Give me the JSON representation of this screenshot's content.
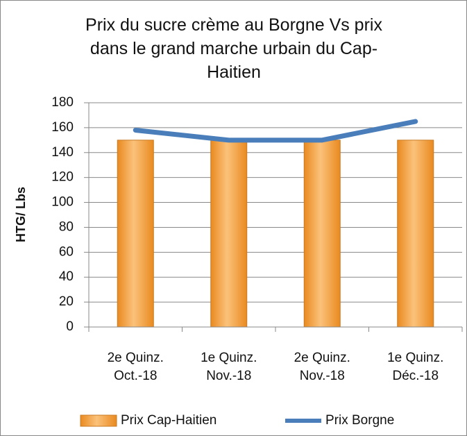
{
  "chart_data": {
    "type": "bar",
    "title": "Prix du sucre crème au Borgne Vs prix dans le grand marche urbain du Cap-Haitien",
    "y_label": "HTG/ Lbs",
    "categories": [
      "2e Quinz. Oct.-18",
      "1e Quinz. Nov.-18",
      "2e Quinz. Nov.-18",
      "1e Quinz. Déc.-18"
    ],
    "series": [
      {
        "name": "Prix Cap-Haitien",
        "type": "bar",
        "color": "#f5a142",
        "values": [
          150,
          150,
          150,
          150
        ]
      },
      {
        "name": "Prix Borgne",
        "type": "line",
        "color": "#4a7ebb",
        "values": [
          158,
          150,
          150,
          165
        ]
      }
    ],
    "ylim": [
      0,
      180
    ],
    "yticks": [
      0,
      20,
      40,
      60,
      80,
      100,
      120,
      140,
      160,
      180
    ],
    "grid": true,
    "legend": "bottom"
  }
}
